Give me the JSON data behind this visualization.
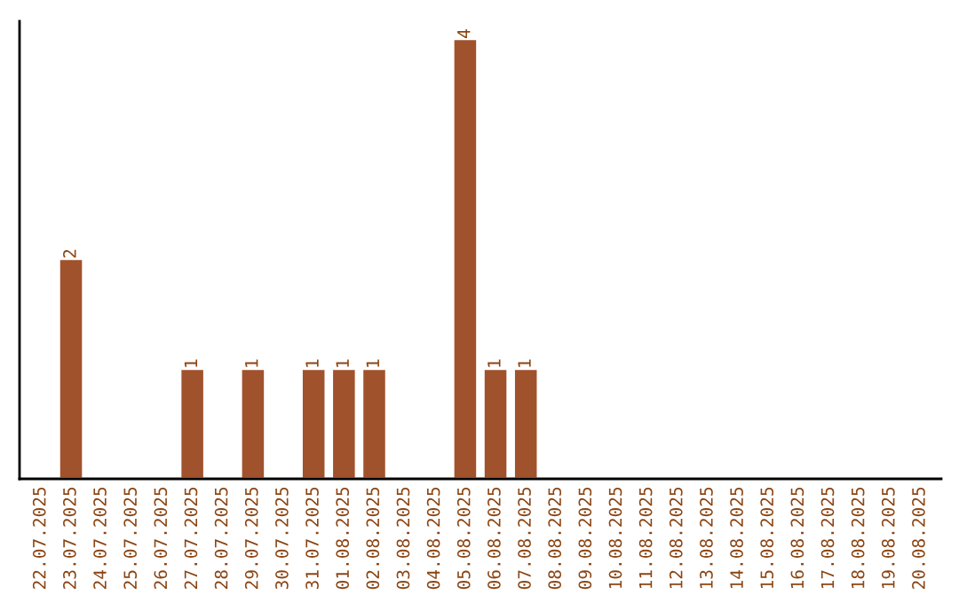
{
  "chart_data": {
    "type": "bar",
    "categories": [
      "22.07.2025",
      "23.07.2025",
      "24.07.2025",
      "25.07.2025",
      "26.07.2025",
      "27.07.2025",
      "28.07.2025",
      "29.07.2025",
      "30.07.2025",
      "31.07.2025",
      "01.08.2025",
      "02.08.2025",
      "03.08.2025",
      "04.08.2025",
      "05.08.2025",
      "06.08.2025",
      "07.08.2025",
      "08.08.2025",
      "09.08.2025",
      "10.08.2025",
      "11.08.2025",
      "12.08.2025",
      "13.08.2025",
      "14.08.2025",
      "15.08.2025",
      "16.08.2025",
      "17.08.2025",
      "18.08.2025",
      "19.08.2025",
      "20.08.2025"
    ],
    "values": [
      0,
      2,
      0,
      0,
      0,
      1,
      0,
      1,
      0,
      1,
      1,
      1,
      0,
      0,
      4,
      1,
      1,
      0,
      0,
      0,
      0,
      0,
      0,
      0,
      0,
      0,
      0,
      0,
      0,
      0
    ],
    "value_labels": [
      null,
      "2",
      null,
      null,
      null,
      "1",
      null,
      "1",
      null,
      "1",
      "1",
      "1",
      null,
      null,
      "4",
      "1",
      "1",
      null,
      null,
      null,
      null,
      null,
      null,
      null,
      null,
      null,
      null,
      null,
      null,
      null
    ],
    "color": "#a0522d",
    "grid": false,
    "legend": false
  }
}
